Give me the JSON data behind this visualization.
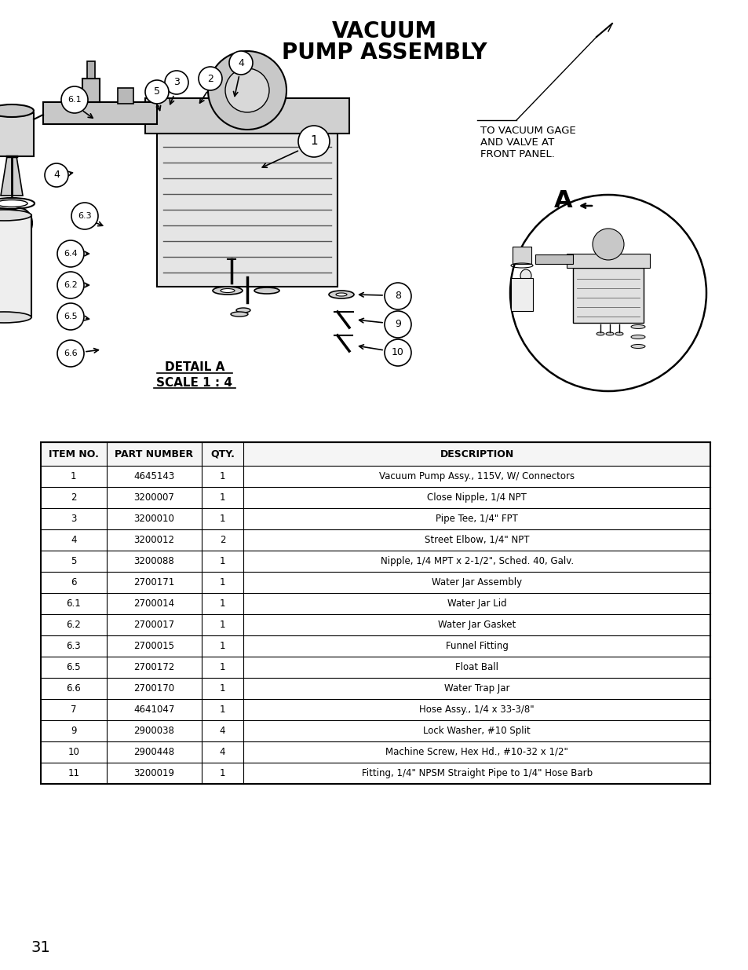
{
  "title_line1": "VACUUM",
  "title_line2": "PUMP ASSEMBLY",
  "vacuum_gage_text": "TO VACUUM GAGE\nAND VALVE AT\nFRONT PANEL.",
  "page_number": "31",
  "table_headers": [
    "ITEM NO.",
    "PART NUMBER",
    "QTY.",
    "DESCRIPTION"
  ],
  "table_rows": [
    [
      "1",
      "4645143",
      "1",
      "Vacuum Pump Assy., 115V, W/ Connectors"
    ],
    [
      "2",
      "3200007",
      "1",
      "Close Nipple, 1/4 NPT"
    ],
    [
      "3",
      "3200010",
      "1",
      "Pipe Tee, 1/4\" FPT"
    ],
    [
      "4",
      "3200012",
      "2",
      "Street Elbow, 1/4\" NPT"
    ],
    [
      "5",
      "3200088",
      "1",
      "Nipple, 1/4 MPT x 2-1/2\", Sched. 40, Galv."
    ],
    [
      "6",
      "2700171",
      "1",
      "Water Jar Assembly"
    ],
    [
      "6.1",
      "2700014",
      "1",
      "Water Jar Lid"
    ],
    [
      "6.2",
      "2700017",
      "1",
      "Water Jar Gasket"
    ],
    [
      "6.3",
      "2700015",
      "1",
      "Funnel Fitting"
    ],
    [
      "6.5",
      "2700172",
      "1",
      "Float Ball"
    ],
    [
      "6.6",
      "2700170",
      "1",
      "Water Trap Jar"
    ],
    [
      "7",
      "4641047",
      "1",
      "Hose Assy., 1/4 x 33-3/8\""
    ],
    [
      "9",
      "2900038",
      "4",
      "Lock Washer, #10 Split"
    ],
    [
      "10",
      "2900448",
      "4",
      "Machine Screw, Hex Hd., #10-32 x 1/2\""
    ],
    [
      "11",
      "3200019",
      "1",
      "Fitting, 1/4\" NPSM Straight Pipe to 1/4\" Hose Barb"
    ]
  ],
  "bg_color": "#ffffff",
  "text_color": "#000000"
}
